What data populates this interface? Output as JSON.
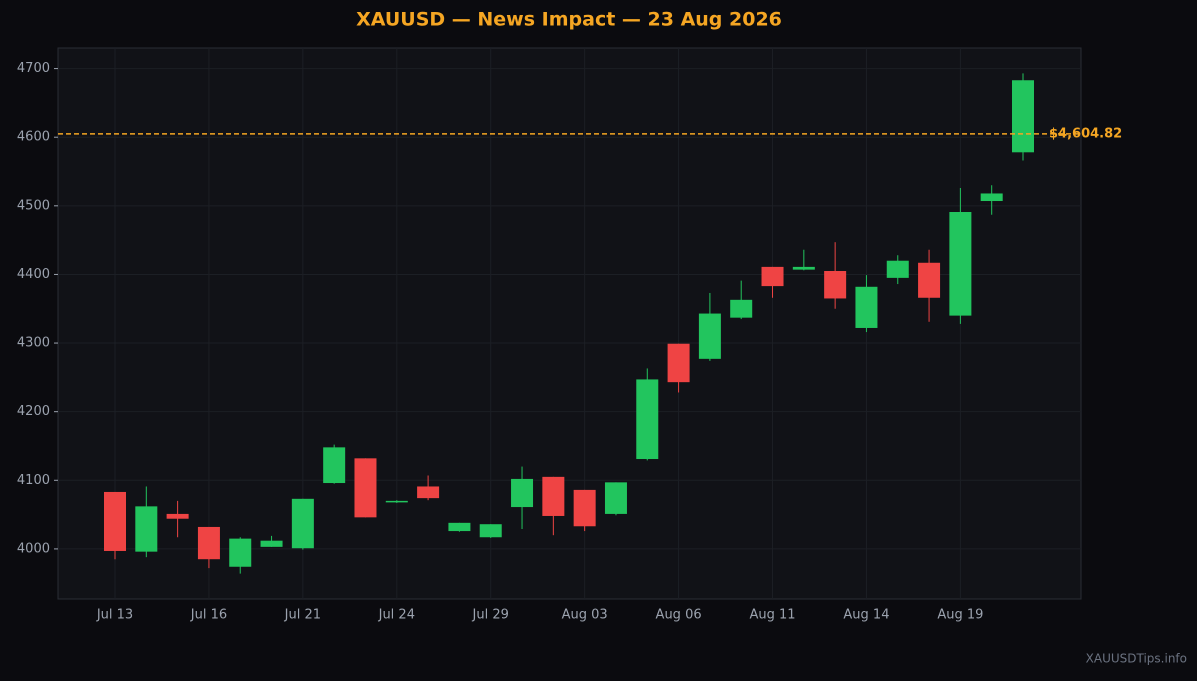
{
  "chart_data": {
    "type": "candlestick",
    "title": "XAUUSD — News Impact — 23 Aug 2026",
    "categories": [
      "Jul 13",
      null,
      null,
      "Jul 16",
      null,
      null,
      "Jul 21",
      null,
      null,
      "Jul 24",
      null,
      null,
      "Jul 29",
      null,
      null,
      "Aug 03",
      null,
      null,
      "Aug 06",
      null,
      null,
      "Aug 11",
      null,
      null,
      "Aug 14",
      null,
      null,
      "Aug 19",
      null,
      null
    ],
    "open": [
      4083,
      3996,
      4051,
      4032,
      3974,
      4003,
      4001,
      4096,
      4132,
      4068,
      4091,
      4026,
      4017,
      4061,
      4105,
      4086,
      4051,
      4131,
      4299,
      4277,
      4337,
      4411,
      4407,
      4405,
      4322,
      4395,
      4417,
      4340,
      4507,
      4578
    ],
    "high": [
      4083,
      4091,
      4070,
      4032,
      4017,
      4019,
      4073,
      4152,
      4132,
      4071,
      4107,
      4038,
      4036,
      4120,
      4105,
      4086,
      4097,
      4263,
      4299,
      4373,
      4391,
      4411,
      4436,
      4447,
      4399,
      4428,
      4436,
      4526,
      4530,
      4693
    ],
    "low": [
      3985,
      3988,
      4017,
      3972,
      3964,
      4003,
      3999,
      4095,
      4046,
      4067,
      4071,
      4025,
      4016,
      4029,
      4020,
      4026,
      4049,
      4129,
      4228,
      4274,
      4335,
      4366,
      4406,
      4350,
      4316,
      4386,
      4331,
      4328,
      4487,
      4566
    ],
    "close": [
      3997,
      4062,
      4044,
      3985,
      4015,
      4012,
      4073,
      4148,
      4046,
      4070,
      4074,
      4038,
      4036,
      4102,
      4048,
      4033,
      4097,
      4247,
      4243,
      4343,
      4363,
      4383,
      4411,
      4365,
      4382,
      4420,
      4366,
      4491,
      4518,
      4683
    ],
    "up_color": "#22c55e",
    "down_color": "#ef4444",
    "ylim": [
      3927,
      4730
    ],
    "yticks": [
      4000,
      4100,
      4200,
      4300,
      4400,
      4500,
      4600,
      4700
    ],
    "grid": true,
    "reference_line": {
      "value": 4604.82,
      "label": "$4,604.82",
      "color": "#f5a623"
    },
    "source": "XAUUSDTips.info"
  }
}
